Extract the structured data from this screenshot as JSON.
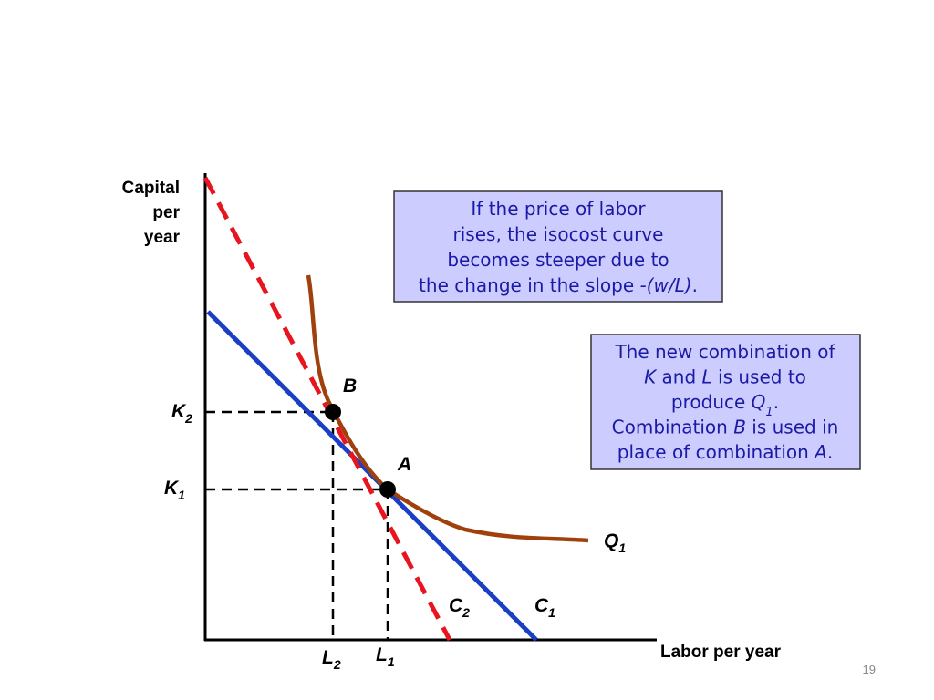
{
  "y_axis_label": [
    "Capital",
    "per",
    "year"
  ],
  "x_axis_label": "Labor per year",
  "point_labels": {
    "B": "B",
    "A": "A"
  },
  "curve_labels": {
    "Q1": {
      "main": "Q",
      "sub": "1"
    },
    "C2": {
      "main": "C",
      "sub": "2"
    },
    "C1": {
      "main": "C",
      "sub": "1"
    }
  },
  "axis_marks": {
    "K2": {
      "main": "K",
      "sub": "2"
    },
    "K1": {
      "main": "K",
      "sub": "1"
    },
    "L2": {
      "main": "L",
      "sub": "2"
    },
    "L1": {
      "main": "L",
      "sub": "1"
    }
  },
  "box1": {
    "lines": [
      [
        {
          "text": "If the price of labor"
        }
      ],
      [
        {
          "text": "rises, the isocost curve"
        }
      ],
      [
        {
          "text": "becomes steeper due to"
        }
      ],
      [
        {
          "text": "the change in the slope "
        },
        {
          "text": "-(w/L)",
          "style": "italic"
        },
        {
          "text": "."
        }
      ]
    ]
  },
  "box2": {
    "lines": [
      [
        {
          "text": "The new combination of"
        }
      ],
      [
        {
          "text": "K",
          "style": "italic"
        },
        {
          "text": " and "
        },
        {
          "text": "L",
          "style": "italic"
        },
        {
          "text": " is used to"
        }
      ],
      [
        {
          "text": "produce "
        },
        {
          "text": "Q",
          "style": "italic"
        },
        {
          "text": "1",
          "style": "sub"
        },
        {
          "text": "."
        }
      ],
      [
        {
          "text": "Combination "
        },
        {
          "text": "B",
          "style": "italic"
        },
        {
          "text": " is used in"
        }
      ],
      [
        {
          "text": "place of combination "
        },
        {
          "text": "A",
          "style": "italic"
        },
        {
          "text": "."
        }
      ]
    ]
  },
  "page_number": "19"
}
